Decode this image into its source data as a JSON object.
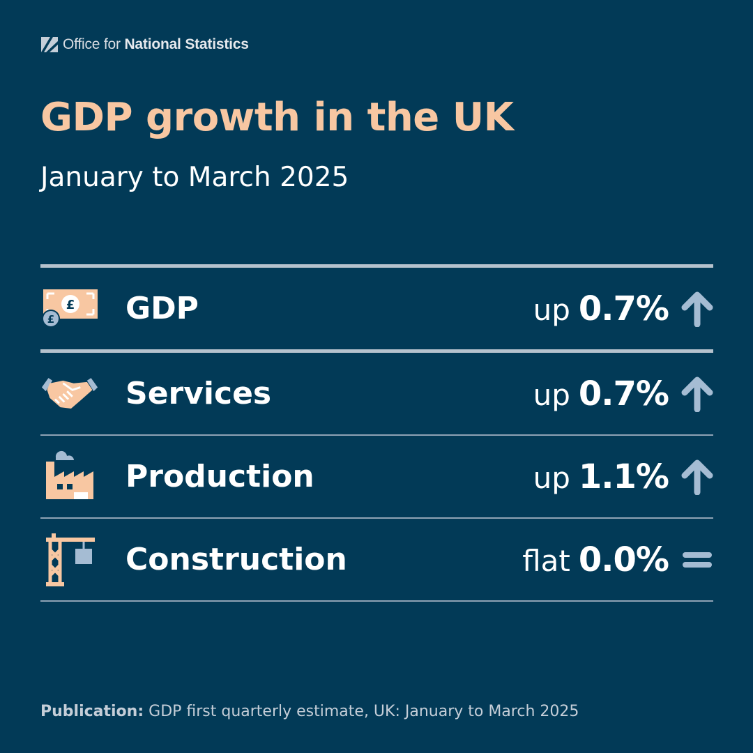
{
  "brand": {
    "prefix": "Office for",
    "name": "National Statistics"
  },
  "title": "GDP growth in the UK",
  "subtitle": "January to March 2025",
  "rows": [
    {
      "label": "GDP",
      "direction_word": "up",
      "value": "0.7%",
      "trend": "up",
      "icon": "banknote-icon"
    },
    {
      "label": "Services",
      "direction_word": "up",
      "value": "0.7%",
      "trend": "up",
      "icon": "handshake-icon"
    },
    {
      "label": "Production",
      "direction_word": "up",
      "value": "1.1%",
      "trend": "up",
      "icon": "factory-icon"
    },
    {
      "label": "Construction",
      "direction_word": "flat",
      "value": "0.0%",
      "trend": "flat",
      "icon": "crane-icon"
    }
  ],
  "footer": {
    "label": "Publication:",
    "text": "GDP first quarterly estimate, UK: January to March 2025"
  },
  "colors": {
    "background": "#023a57",
    "accent": "#f8c7a2",
    "arrow": "#a5bcd3"
  }
}
